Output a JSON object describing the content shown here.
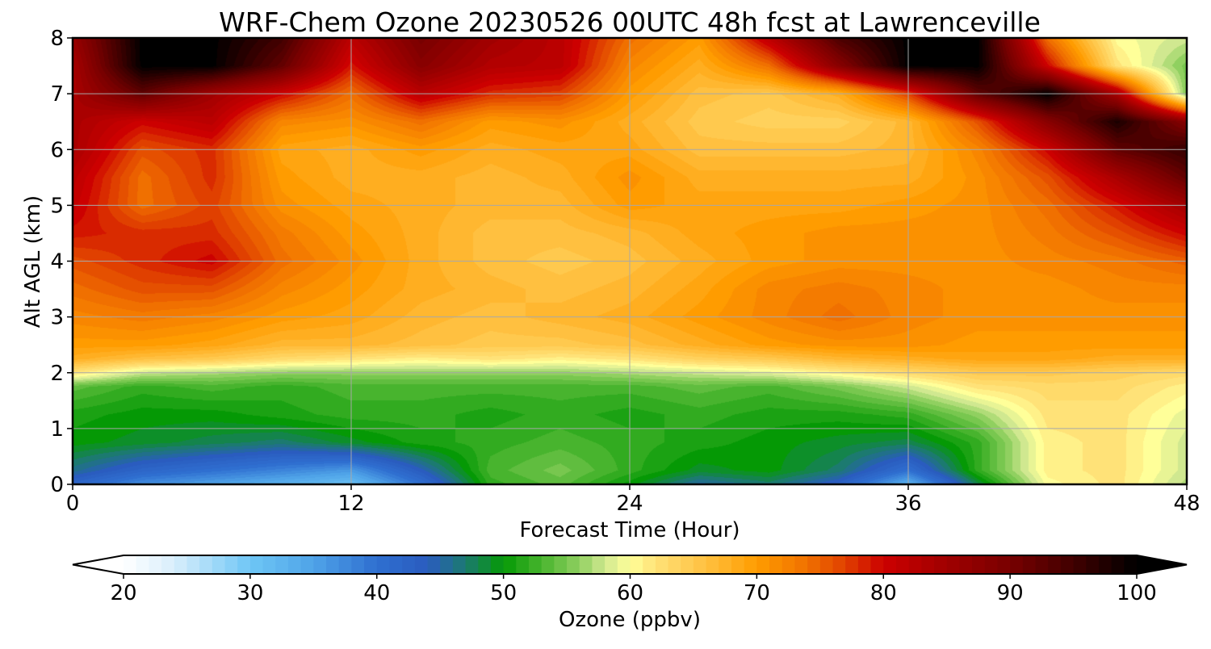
{
  "chart_data": {
    "type": "heatmap",
    "title": "WRF-Chem Ozone  20230526 00UTC 48h fcst at Lawrenceville",
    "xlabel": "Forecast Time (Hour)",
    "ylabel": "Alt AGL (km)",
    "xlim": [
      0,
      48
    ],
    "ylim": [
      0,
      8
    ],
    "xticks": [
      0,
      12,
      24,
      36,
      48
    ],
    "yticks": [
      0,
      1,
      2,
      3,
      4,
      5,
      6,
      7,
      8
    ],
    "grid": true,
    "x": [
      0,
      3,
      6,
      9,
      12,
      15,
      18,
      21,
      24,
      27,
      30,
      33,
      36,
      39,
      42,
      45,
      48
    ],
    "y": [
      0,
      0.25,
      0.75,
      1.25,
      1.75,
      2.0,
      2.25,
      2.5,
      3,
      3.5,
      4,
      4.5,
      5,
      5.5,
      6,
      6.5,
      7,
      7.5,
      8
    ],
    "z": [
      [
        42,
        37,
        35,
        33,
        31,
        40,
        52,
        54,
        50,
        45,
        47,
        43,
        33,
        48,
        60,
        62,
        57
      ],
      [
        46,
        42,
        40,
        38,
        36,
        44,
        53,
        55,
        52,
        49,
        50,
        47,
        40,
        52,
        61,
        62,
        58
      ],
      [
        50,
        49,
        48,
        47,
        49,
        51,
        52,
        53,
        52,
        51,
        50,
        49,
        48,
        52,
        61,
        62,
        58
      ],
      [
        51,
        50,
        50,
        51,
        52,
        52,
        51,
        52,
        51,
        52,
        51,
        51,
        52,
        56,
        62,
        62,
        59
      ],
      [
        54,
        52,
        53,
        52,
        53,
        53,
        53,
        53,
        53,
        54,
        53,
        55,
        58,
        62,
        63,
        63,
        61
      ],
      [
        62,
        58,
        57,
        56,
        56,
        56,
        56,
        56,
        57,
        58,
        59,
        61,
        63,
        65,
        65,
        64,
        63
      ],
      [
        68,
        66,
        65,
        63,
        62,
        61,
        62,
        61,
        62,
        64,
        65,
        67,
        68,
        69,
        69,
        68,
        68
      ],
      [
        70,
        70,
        69,
        67,
        67,
        66,
        65,
        65,
        66,
        68,
        70,
        71,
        71,
        70,
        70,
        70,
        70
      ],
      [
        72,
        73,
        72,
        70,
        69,
        67,
        66,
        67,
        68,
        70,
        72,
        74,
        72,
        71,
        71,
        71,
        71
      ],
      [
        74,
        76,
        76,
        72,
        70,
        68,
        67,
        66,
        67,
        69,
        72,
        73,
        72,
        71,
        71,
        72,
        72
      ],
      [
        76,
        78,
        80,
        74,
        71,
        68,
        66,
        65,
        66,
        68,
        70,
        71,
        71,
        71,
        72,
        73,
        75
      ],
      [
        79,
        78,
        78,
        73,
        70,
        68,
        66,
        66,
        67,
        69,
        70,
        71,
        71,
        71,
        73,
        76,
        80
      ],
      [
        81,
        74,
        77,
        71,
        69,
        68,
        67,
        67,
        70,
        69,
        69,
        69,
        70,
        71,
        74,
        79,
        85
      ],
      [
        82,
        74,
        78,
        70,
        68,
        68,
        67,
        68,
        71,
        68,
        68,
        68,
        68,
        71,
        76,
        84,
        92
      ],
      [
        84,
        76,
        78,
        69,
        68,
        70,
        68,
        69,
        69,
        66,
        66,
        66,
        67,
        72,
        80,
        92,
        96
      ],
      [
        84,
        80,
        82,
        72,
        71,
        74,
        70,
        71,
        68,
        65,
        64,
        64,
        67,
        76,
        88,
        98,
        88
      ],
      [
        84,
        92,
        85,
        80,
        74,
        82,
        78,
        77,
        70,
        66,
        65,
        68,
        77,
        92,
        100,
        84,
        55
      ],
      [
        84,
        100,
        100,
        92,
        79,
        88,
        83,
        82,
        72,
        68,
        74,
        88,
        100,
        100,
        80,
        62,
        55
      ],
      [
        86,
        100,
        100,
        95,
        82,
        90,
        85,
        82,
        74,
        70,
        82,
        94,
        100,
        100,
        74,
        60,
        58
      ]
    ],
    "colorbar": {
      "label": "Ozone  (ppbv)",
      "min": 20,
      "max": 100,
      "ticks": [
        20,
        30,
        40,
        50,
        60,
        70,
        80,
        90,
        100
      ],
      "extend": "both",
      "colors": [
        {
          "v": 20,
          "c": "#ffffff"
        },
        {
          "v": 24,
          "c": "#d8eefb"
        },
        {
          "v": 30,
          "c": "#6ec6f5"
        },
        {
          "v": 35,
          "c": "#4fa3e8"
        },
        {
          "v": 40,
          "c": "#2f6fd0"
        },
        {
          "v": 44,
          "c": "#2a5cbf"
        },
        {
          "v": 47,
          "c": "#1c7a70"
        },
        {
          "v": 50,
          "c": "#059905"
        },
        {
          "v": 53,
          "c": "#48b42e"
        },
        {
          "v": 56,
          "c": "#90d060"
        },
        {
          "v": 58,
          "c": "#d0e890"
        },
        {
          "v": 60,
          "c": "#ffff99"
        },
        {
          "v": 62,
          "c": "#ffe278"
        },
        {
          "v": 66,
          "c": "#ffc040"
        },
        {
          "v": 70,
          "c": "#ff9c00"
        },
        {
          "v": 74,
          "c": "#f07000"
        },
        {
          "v": 77,
          "c": "#e04000"
        },
        {
          "v": 80,
          "c": "#cc0000"
        },
        {
          "v": 85,
          "c": "#a00000"
        },
        {
          "v": 90,
          "c": "#780000"
        },
        {
          "v": 95,
          "c": "#400000"
        },
        {
          "v": 100,
          "c": "#000000"
        }
      ]
    }
  }
}
